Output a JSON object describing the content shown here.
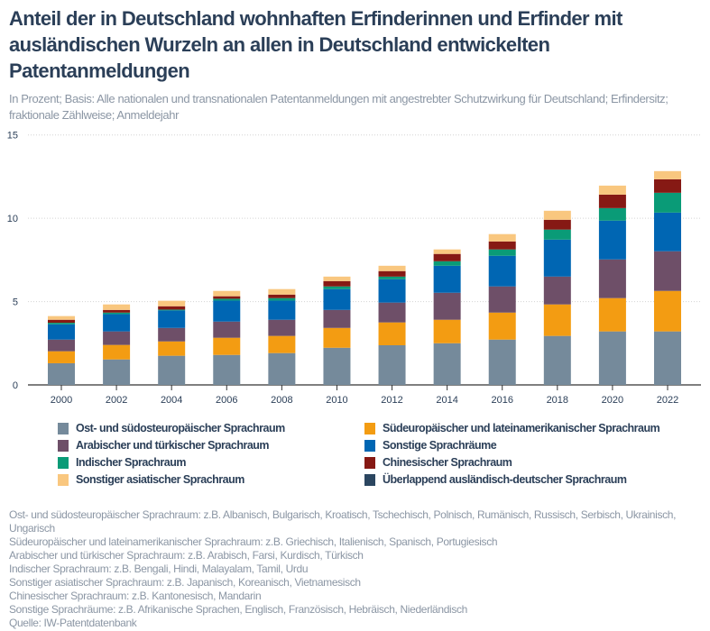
{
  "chart_data": {
    "type": "bar",
    "stacked": true,
    "title": "Anteil der in Deutschland wohnhaften Erfinderinnen und Erfinder mit ausländischen Wurzeln an allen in Deutschland entwickelten Patentanmeldungen",
    "subtitle": "In Prozent; Basis: Alle nationalen und transnationalen Patentanmeldungen mit angestrebter Schutzwirkung für Deutschland; Erfindersitz; fraktionale Zählweise; Anmeldejahr",
    "xlabel": "",
    "ylabel": "",
    "ylim": [
      0,
      15
    ],
    "yticks": [
      "0",
      "5",
      "10",
      "15"
    ],
    "grid": true,
    "legend_position": "bottom",
    "categories": [
      "2000",
      "2002",
      "2004",
      "2006",
      "2008",
      "2010",
      "2012",
      "2014",
      "2016",
      "2018",
      "2020",
      "2022"
    ],
    "series": [
      {
        "name": "Ost- und südosteuropäischer Sprachraum",
        "color": "#758a9b",
        "values": [
          1.3,
          1.53,
          1.75,
          1.8,
          1.91,
          2.23,
          2.38,
          2.5,
          2.72,
          2.94,
          3.21,
          3.21
        ]
      },
      {
        "name": "Südeuropäischer und lateinamerikanischer Sprachraum",
        "color": "#f39c12",
        "values": [
          0.72,
          0.87,
          0.86,
          1.03,
          1.03,
          1.19,
          1.37,
          1.41,
          1.62,
          1.89,
          2.0,
          2.43
        ]
      },
      {
        "name": "Arabischer und türkischer Sprachraum",
        "color": "#6e4f68",
        "values": [
          0.7,
          0.81,
          0.81,
          0.97,
          0.97,
          1.08,
          1.19,
          1.62,
          1.57,
          1.67,
          2.32,
          2.38
        ]
      },
      {
        "name": "Sonstige Sprachräume",
        "color": "#0066b3",
        "values": [
          0.92,
          1.04,
          1.05,
          1.26,
          1.15,
          1.25,
          1.4,
          1.62,
          1.84,
          2.22,
          2.33,
          2.32
        ]
      },
      {
        "name": "Indischer Sprachraum",
        "color": "#0a9b77",
        "values": [
          0.09,
          0.09,
          0.05,
          0.11,
          0.15,
          0.16,
          0.16,
          0.27,
          0.38,
          0.6,
          0.75,
          1.19
        ]
      },
      {
        "name": "Chinesischer Sprachraum",
        "color": "#861914",
        "values": [
          0.18,
          0.16,
          0.2,
          0.15,
          0.21,
          0.32,
          0.33,
          0.44,
          0.48,
          0.59,
          0.81,
          0.81
        ]
      },
      {
        "name": "Sonstiger asiatischer Sprachraum",
        "color": "#f9c77f",
        "values": [
          0.22,
          0.33,
          0.33,
          0.32,
          0.33,
          0.27,
          0.32,
          0.27,
          0.44,
          0.54,
          0.54,
          0.49
        ]
      },
      {
        "name": "Überlappend ausländisch-deutscher Sprachraum",
        "color": "#2b4660",
        "values": [
          0,
          0,
          0,
          0,
          0,
          0,
          0,
          0,
          0,
          0,
          0,
          0
        ]
      }
    ],
    "legend_order": [
      0,
      1,
      2,
      3,
      4,
      5,
      6,
      7
    ]
  },
  "notes": [
    "Ost- und südosteuropäischer Sprachraum: z.B. Albanisch, Bulgarisch, Kroatisch, Tschechisch, Polnisch, Rumänisch, Russisch, Serbisch, Ukrainisch, Ungarisch",
    "Südeuropäischer und lateinamerikanischer Sprachraum: z.B. Griechisch, Italienisch, Spanisch, Portugiesisch",
    "Arabischer und türkischer Sprachraum: z.B. Arabisch, Farsi, Kurdisch, Türkisch",
    "Indischer Sprachraum: z.B. Bengali, Hindi, Malayalam, Tamil, Urdu",
    "Sonstiger asiatischer Sprachraum: z.B. Japanisch, Koreanisch, Vietnamesisch",
    "Chinesischer Sprachraum: z.B. Kantonesisch, Mandarin",
    "Sonstige Sprachräume: z.B. Afrikanische Sprachen, Englisch, Französisch, Hebräisch, Niederländisch",
    "Quelle: IW-Patentdatenbank"
  ]
}
